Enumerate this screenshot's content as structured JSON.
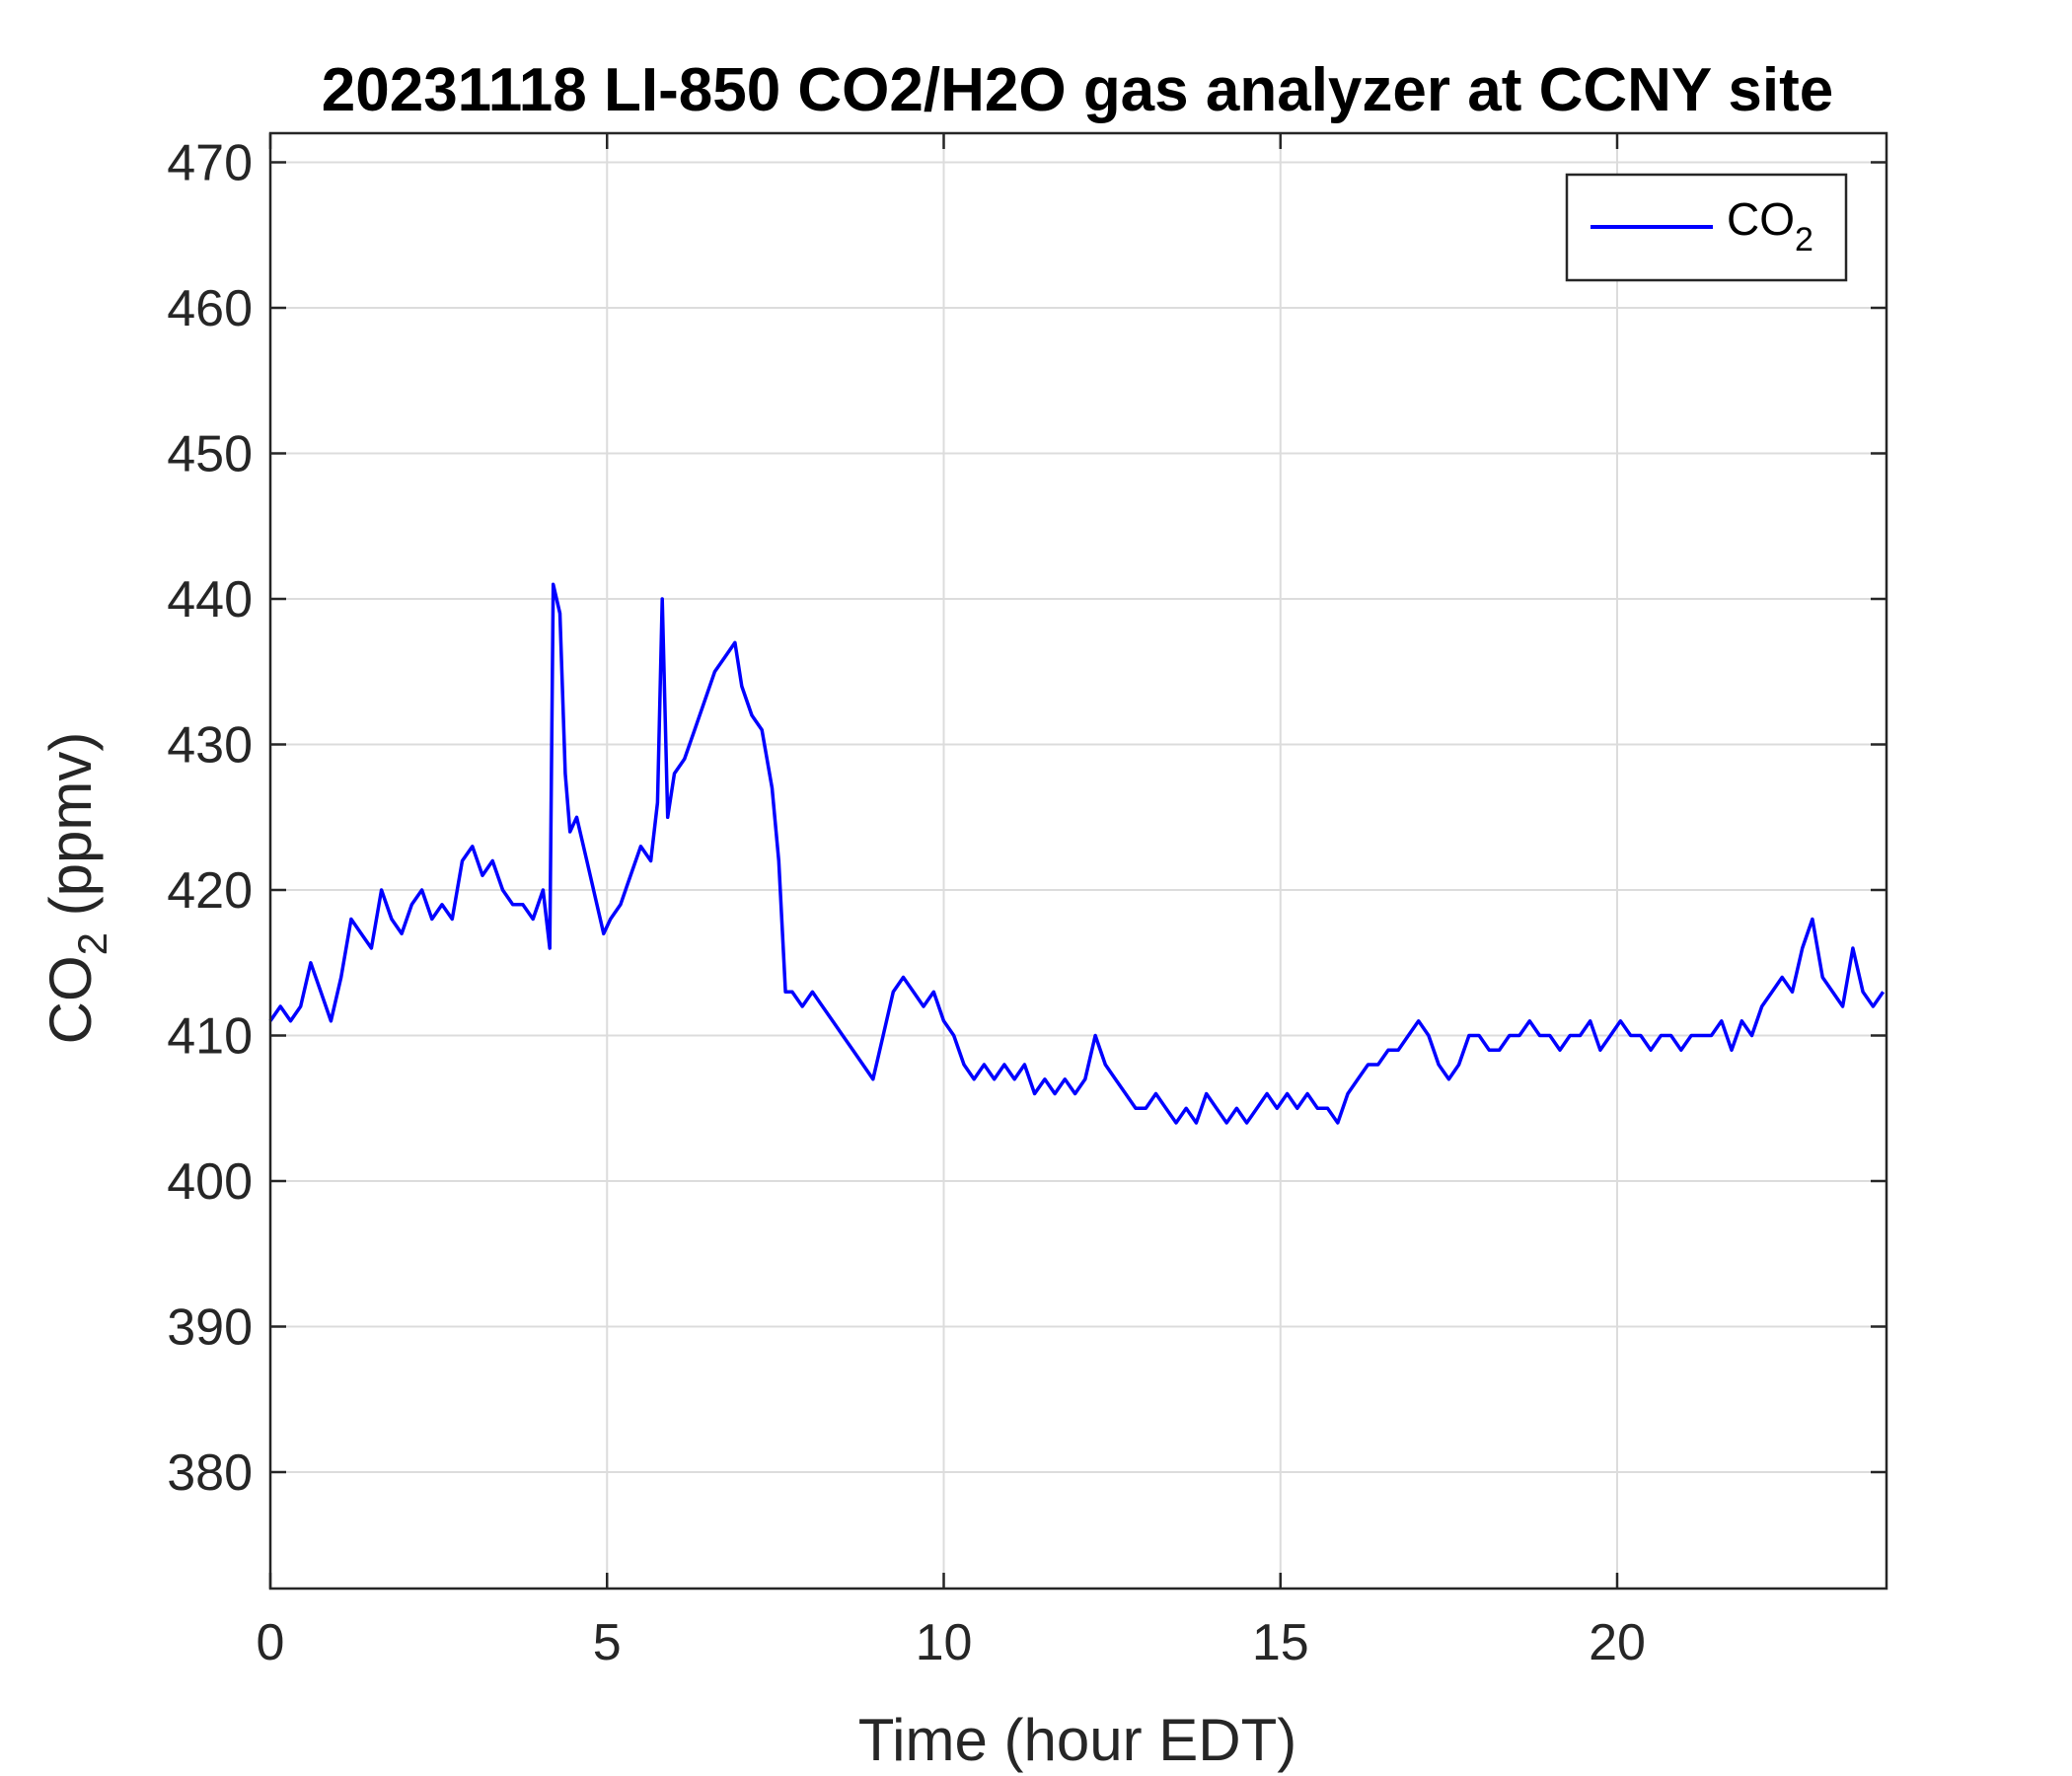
{
  "chart_data": {
    "type": "line",
    "title": "20231118 LI-850 CO2/H2O gas analyzer at CCNY site",
    "xlabel": {
      "main": "Time (hour EDT)"
    },
    "ylabel": {
      "prefix": "CO",
      "subscript": "2",
      "suffix": " (ppmv)"
    },
    "xlim": [
      0,
      24
    ],
    "ylim": [
      372,
      472
    ],
    "xticks": [
      0,
      5,
      10,
      15,
      20
    ],
    "xtick_labels": [
      "0",
      "5",
      "10",
      "15",
      "20"
    ],
    "yticks": [
      380,
      390,
      400,
      410,
      420,
      430,
      440,
      450,
      460,
      470
    ],
    "ytick_labels": [
      "380",
      "390",
      "400",
      "410",
      "420",
      "430",
      "440",
      "450",
      "460",
      "470"
    ],
    "grid": true,
    "legend": {
      "placement": "top-right",
      "entries": [
        {
          "prefix": "CO",
          "subscript": "2",
          "color": "#0000ff"
        }
      ]
    },
    "series": [
      {
        "name": "CO2",
        "color": "#0000ff",
        "x": [
          0.0,
          0.15,
          0.3,
          0.45,
          0.6,
          0.75,
          0.9,
          1.05,
          1.2,
          1.35,
          1.5,
          1.65,
          1.8,
          1.95,
          2.1,
          2.25,
          2.4,
          2.55,
          2.7,
          2.85,
          3.0,
          3.15,
          3.3,
          3.45,
          3.6,
          3.75,
          3.9,
          4.05,
          4.15,
          4.2,
          4.3,
          4.38,
          4.45,
          4.55,
          4.7,
          4.85,
          4.95,
          5.05,
          5.2,
          5.35,
          5.5,
          5.65,
          5.75,
          5.82,
          5.9,
          6.0,
          6.15,
          6.3,
          6.45,
          6.6,
          6.75,
          6.9,
          7.0,
          7.15,
          7.3,
          7.45,
          7.55,
          7.65,
          7.75,
          7.9,
          8.05,
          8.2,
          8.35,
          8.5,
          8.65,
          8.8,
          8.95,
          9.1,
          9.25,
          9.4,
          9.55,
          9.7,
          9.85,
          10.0,
          10.15,
          10.3,
          10.45,
          10.6,
          10.75,
          10.9,
          11.05,
          11.2,
          11.35,
          11.5,
          11.65,
          11.8,
          11.95,
          12.1,
          12.25,
          12.4,
          12.55,
          12.7,
          12.85,
          13.0,
          13.15,
          13.3,
          13.45,
          13.6,
          13.75,
          13.9,
          14.05,
          14.2,
          14.35,
          14.5,
          14.65,
          14.8,
          14.95,
          15.1,
          15.25,
          15.4,
          15.55,
          15.7,
          15.85,
          16.0,
          16.15,
          16.3,
          16.45,
          16.6,
          16.75,
          16.9,
          17.05,
          17.2,
          17.35,
          17.5,
          17.65,
          17.8,
          17.95,
          18.1,
          18.25,
          18.4,
          18.55,
          18.7,
          18.85,
          19.0,
          19.15,
          19.3,
          19.45,
          19.6,
          19.75,
          19.9,
          20.05,
          20.2,
          20.35,
          20.5,
          20.65,
          20.8,
          20.95,
          21.1,
          21.25,
          21.4,
          21.55,
          21.7,
          21.85,
          22.0,
          22.15,
          22.3,
          22.45,
          22.6,
          22.75,
          22.9,
          23.05,
          23.2,
          23.35,
          23.5,
          23.65,
          23.8,
          23.95
        ],
        "y": [
          411,
          412,
          411,
          412,
          415,
          413,
          411,
          414,
          418,
          417,
          416,
          420,
          418,
          417,
          419,
          420,
          418,
          419,
          418,
          422,
          423,
          421,
          422,
          420,
          419,
          419,
          418,
          420,
          416,
          441,
          439,
          428,
          424,
          425,
          422,
          419,
          417,
          418,
          419,
          421,
          423,
          422,
          426,
          440,
          425,
          428,
          429,
          431,
          433,
          435,
          436,
          437,
          434,
          432,
          431,
          427,
          422,
          413,
          413,
          412,
          413,
          412,
          411,
          410,
          409,
          408,
          407,
          410,
          413,
          414,
          413,
          412,
          413,
          411,
          410,
          408,
          407,
          408,
          407,
          408,
          407,
          408,
          406,
          407,
          406,
          407,
          406,
          407,
          410,
          408,
          407,
          406,
          405,
          405,
          406,
          405,
          404,
          405,
          404,
          406,
          405,
          404,
          405,
          404,
          405,
          406,
          405,
          406,
          405,
          406,
          405,
          405,
          404,
          406,
          407,
          408,
          408,
          409,
          409,
          410,
          411,
          410,
          408,
          407,
          408,
          410,
          410,
          409,
          409,
          410,
          410,
          411,
          410,
          410,
          409,
          410,
          410,
          411,
          409,
          410,
          411,
          410,
          410,
          409,
          410,
          410,
          409,
          410,
          410,
          410,
          411,
          409,
          411,
          410,
          412,
          413,
          414,
          413,
          416,
          418,
          414,
          413,
          412,
          416,
          413,
          412,
          413
        ]
      }
    ]
  }
}
